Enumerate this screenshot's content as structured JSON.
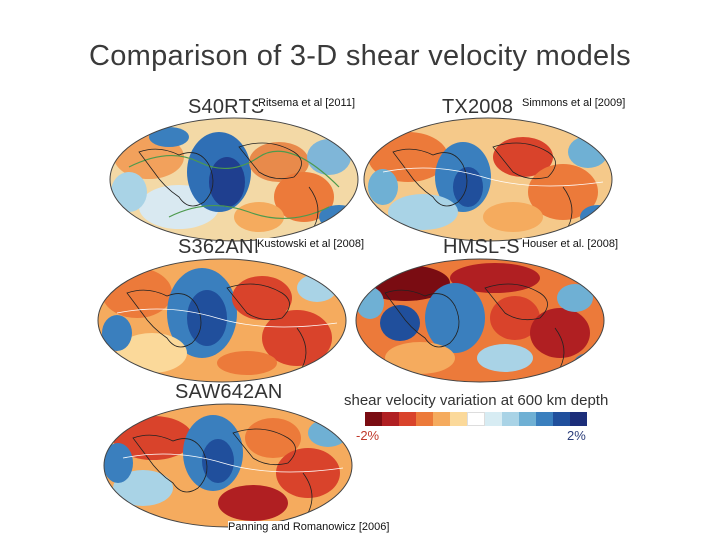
{
  "slide_title": "Comparison of 3-D shear velocity models",
  "maps": [
    {
      "model": "S40RTS",
      "citation": "Ritsema et al [2011]"
    },
    {
      "model": "TX2008",
      "citation": "Simmons et al [2009]"
    },
    {
      "model": "S362ANI",
      "citation": "Kustowski et al [2008]"
    },
    {
      "model": "HMSL-S",
      "citation": "Houser et al. [2008]"
    },
    {
      "model": "SAW642AN",
      "citation": "Panning and Romanowicz [2006]"
    }
  ],
  "legend": {
    "title": "shear velocity variation at 600 km depth",
    "min_label": "-2%",
    "max_label": "2%",
    "colors": [
      "#7a0c12",
      "#b01f22",
      "#d9432b",
      "#ec7a3a",
      "#f5ab5e",
      "#fbd99a",
      "#ffffff",
      "#d7ecf3",
      "#a9d3e6",
      "#6fb0d4",
      "#3a7fbe",
      "#204f9c",
      "#1c2e7a"
    ]
  }
}
